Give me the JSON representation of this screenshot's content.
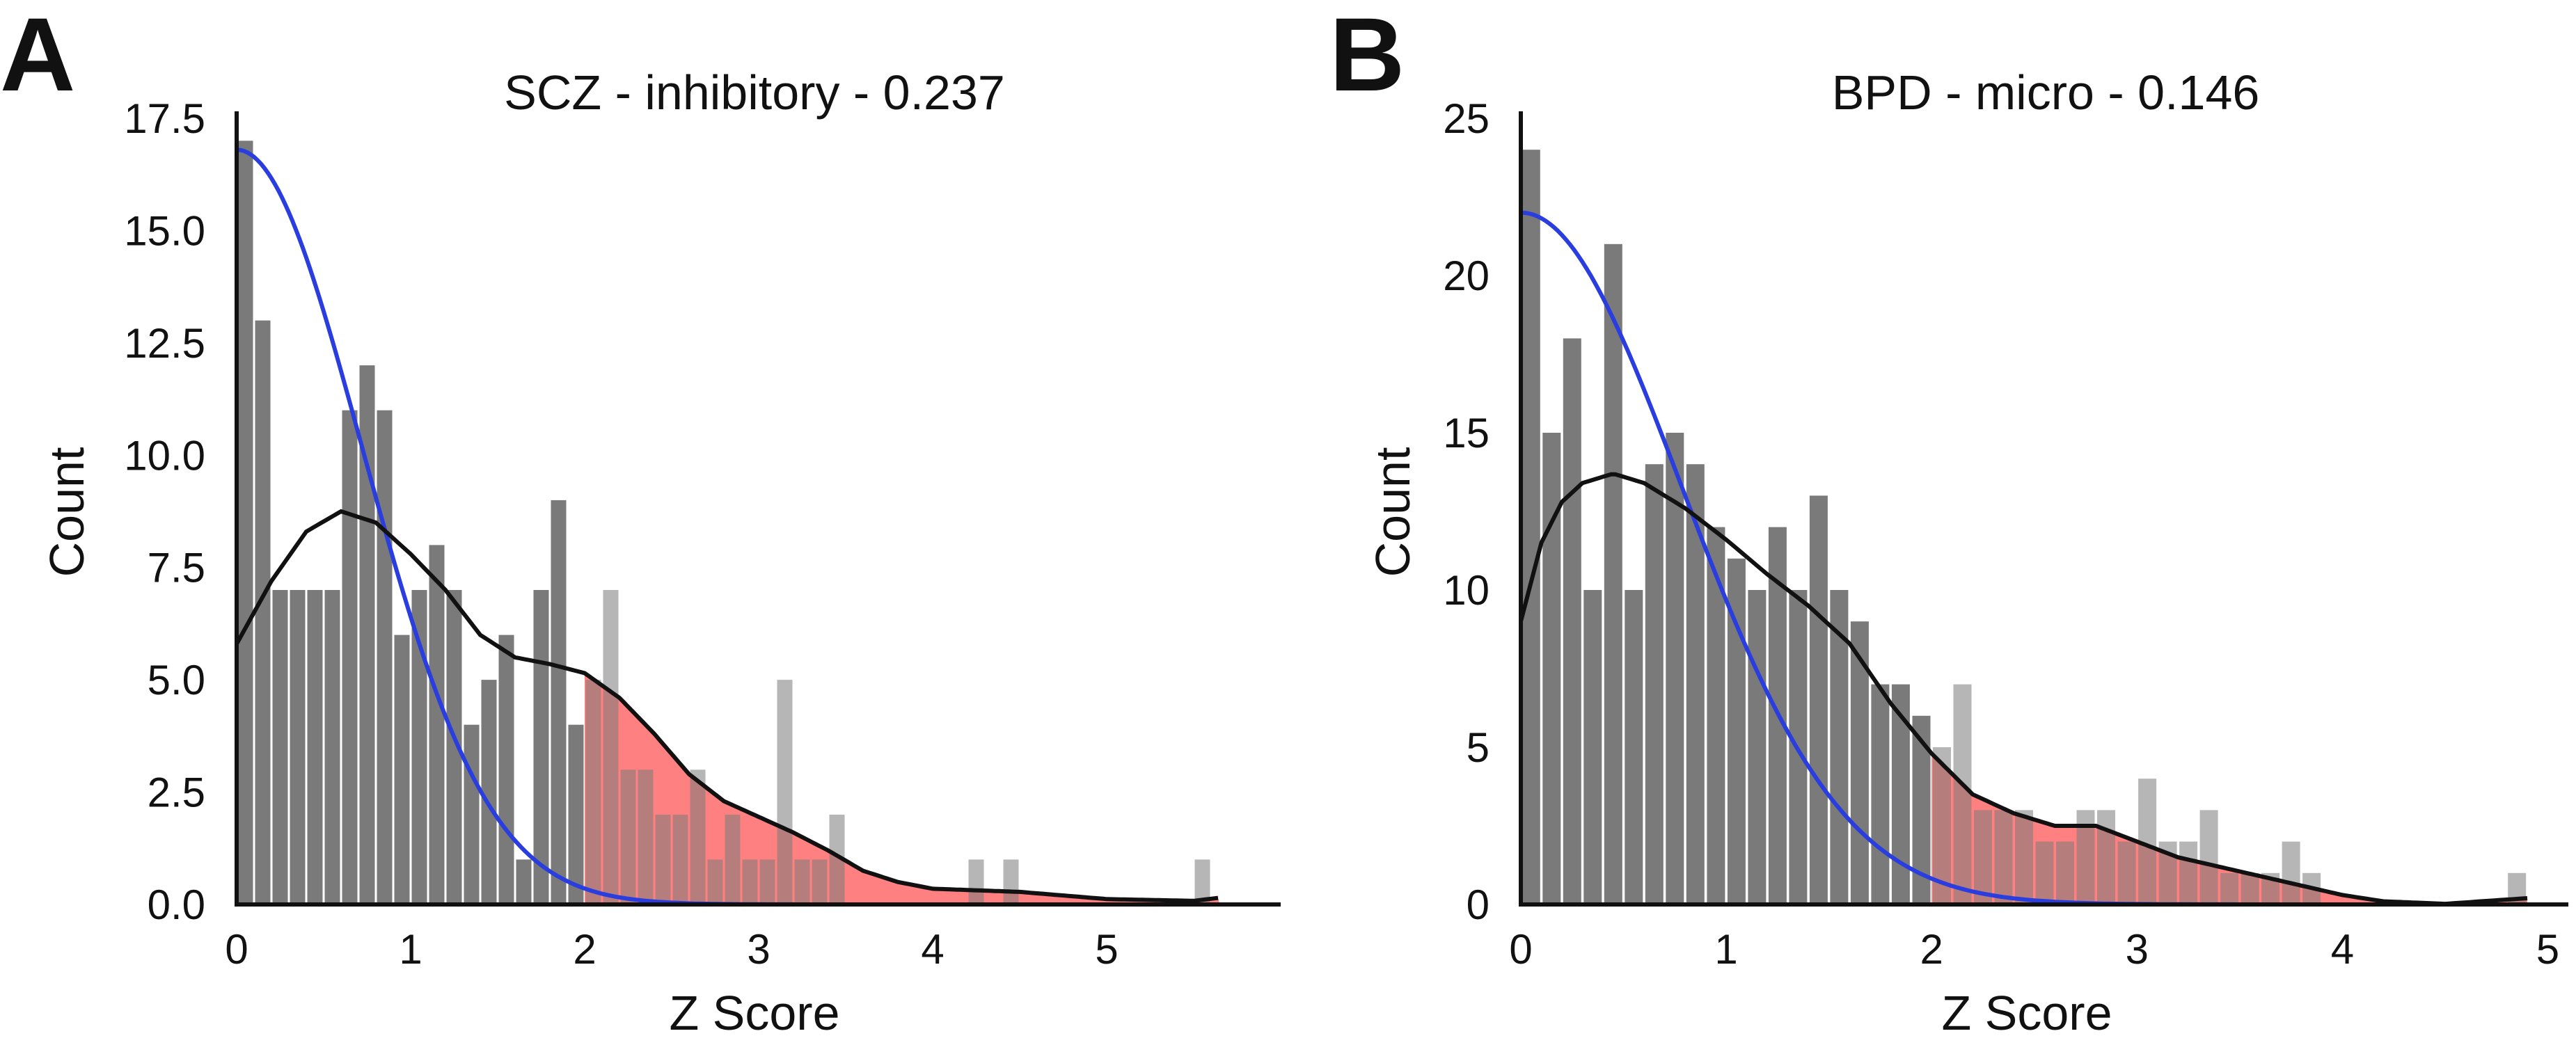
{
  "panels": [
    {
      "letter": "A",
      "title": "SCZ - inhibitory - 0.237",
      "xlabel": "Z Score",
      "ylabel": "Count"
    },
    {
      "letter": "B",
      "title": "BPD - micro - 0.146",
      "xlabel": "Z Score",
      "ylabel": "Count"
    }
  ],
  "colors": {
    "bar": "#7a7a7a",
    "highlight_fill": "#ff8080",
    "normal_curve": "#2a3ee0",
    "kde_curve": "#111111",
    "axis": "#111111"
  },
  "chart_data": [
    {
      "type": "bar",
      "panel": "A",
      "title": "SCZ - inhibitory - 0.237",
      "xlabel": "Z Score",
      "ylabel": "Count",
      "xlim": [
        0,
        6
      ],
      "ylim": [
        0,
        17.5
      ],
      "xticks": [
        0,
        1,
        2,
        3,
        4,
        5
      ],
      "yticks": [
        0.0,
        2.5,
        5.0,
        7.5,
        10.0,
        12.5,
        15.0,
        17.5
      ],
      "ytick_labels": [
        "0.0",
        "2.5",
        "5.0",
        "7.5",
        "10.0",
        "12.5",
        "15.0",
        "17.5"
      ],
      "bin_width": 0.1,
      "bin_start": 0.0,
      "values": [
        17,
        13,
        7,
        7,
        7,
        7,
        11,
        12,
        11,
        6,
        7,
        8,
        7,
        4,
        5,
        6,
        1,
        7,
        9,
        4,
        5,
        7,
        3,
        3,
        2,
        2,
        3,
        1,
        2,
        1,
        1,
        5,
        1,
        1,
        2,
        0,
        0,
        0,
        0,
        0,
        0,
        0,
        1,
        0,
        1,
        0,
        0,
        0,
        0,
        0,
        0,
        0,
        0,
        0,
        0,
        1
      ],
      "highlight_threshold": 2.0,
      "normal_curve": {
        "amplitude": 16.8,
        "sigma": 0.72
      },
      "kde_curve": {
        "x": [
          0.0,
          0.2,
          0.4,
          0.6,
          0.8,
          1.0,
          1.2,
          1.4,
          1.6,
          1.8,
          2.0,
          2.2,
          2.4,
          2.6,
          2.8,
          3.0,
          3.2,
          3.4,
          3.6,
          3.8,
          4.0,
          4.5,
          5.0,
          5.5,
          5.65
        ],
        "y": [
          5.8,
          7.2,
          8.3,
          8.75,
          8.5,
          7.8,
          7.0,
          6.0,
          5.5,
          5.35,
          5.15,
          4.6,
          3.8,
          2.9,
          2.3,
          1.95,
          1.6,
          1.2,
          0.75,
          0.5,
          0.35,
          0.28,
          0.12,
          0.08,
          0.15
        ]
      }
    },
    {
      "type": "bar",
      "panel": "B",
      "title": "BPD - micro - 0.146",
      "xlabel": "Z Score",
      "ylabel": "Count",
      "xlim": [
        0,
        5.1
      ],
      "ylim": [
        0,
        25
      ],
      "xticks": [
        0,
        1,
        2,
        3,
        4,
        5
      ],
      "yticks": [
        0,
        5,
        10,
        15,
        20,
        25
      ],
      "ytick_labels": [
        "0",
        "5",
        "10",
        "15",
        "20",
        "25"
      ],
      "bin_width": 0.1,
      "bin_start": 0.0,
      "values": [
        24,
        15,
        18,
        10,
        21,
        10,
        14,
        15,
        14,
        12,
        11,
        10,
        12,
        10,
        13,
        10,
        9,
        7,
        7,
        6,
        5,
        7,
        3,
        3,
        3,
        2,
        2,
        3,
        3,
        2,
        4,
        2,
        2,
        3,
        1,
        1,
        1,
        2,
        1,
        0,
        0,
        0,
        0,
        0,
        0,
        0,
        0,
        0,
        1
      ],
      "highlight_threshold": 2.0,
      "normal_curve": {
        "amplitude": 22.0,
        "sigma": 0.78
      },
      "kde_curve": {
        "x": [
          0.0,
          0.1,
          0.2,
          0.3,
          0.45,
          0.6,
          0.8,
          1.0,
          1.2,
          1.4,
          1.6,
          1.8,
          2.0,
          2.2,
          2.4,
          2.6,
          2.8,
          3.0,
          3.2,
          3.4,
          3.6,
          3.8,
          4.0,
          4.2,
          4.5,
          4.9
        ],
        "y": [
          9.0,
          11.5,
          12.8,
          13.4,
          13.7,
          13.4,
          12.6,
          11.6,
          10.5,
          9.5,
          8.3,
          6.4,
          4.8,
          3.5,
          2.9,
          2.5,
          2.5,
          2.0,
          1.5,
          1.2,
          0.9,
          0.6,
          0.3,
          0.1,
          0.02,
          0.2
        ]
      }
    }
  ]
}
